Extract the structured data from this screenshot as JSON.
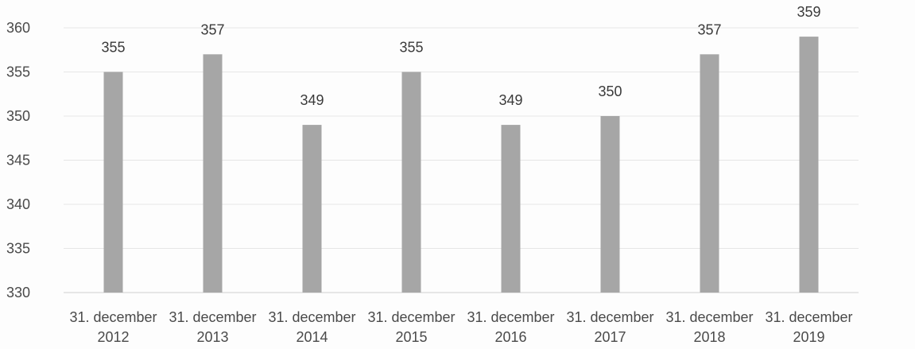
{
  "chart_data": {
    "type": "bar",
    "categories": [
      "31. december 2012",
      "31. december 2013",
      "31. december 2014",
      "31. december 2015",
      "31. december 2016",
      "31. december 2017",
      "31. december 2018",
      "31. december 2019"
    ],
    "category_lines": [
      [
        "31. december",
        "2012"
      ],
      [
        "31. december",
        "2013"
      ],
      [
        "31. december",
        "2014"
      ],
      [
        "31. december",
        "2015"
      ],
      [
        "31. december",
        "2016"
      ],
      [
        "31. december",
        "2017"
      ],
      [
        "31. december",
        "2018"
      ],
      [
        "31. december",
        "2019"
      ]
    ],
    "values": [
      355,
      357,
      349,
      355,
      349,
      350,
      357,
      359
    ],
    "data_labels": [
      "355",
      "357",
      "349",
      "355",
      "349",
      "350",
      "357",
      "359"
    ],
    "title": "",
    "xlabel": "",
    "ylabel": "",
    "ylim": [
      330,
      360
    ],
    "yticks": [
      330,
      335,
      340,
      345,
      350,
      355,
      360
    ],
    "grid": true,
    "legend": "none",
    "colors": {
      "bar": "#a6a6a6",
      "grid": "#e6e6e6",
      "text": "#4a4a4a"
    }
  }
}
